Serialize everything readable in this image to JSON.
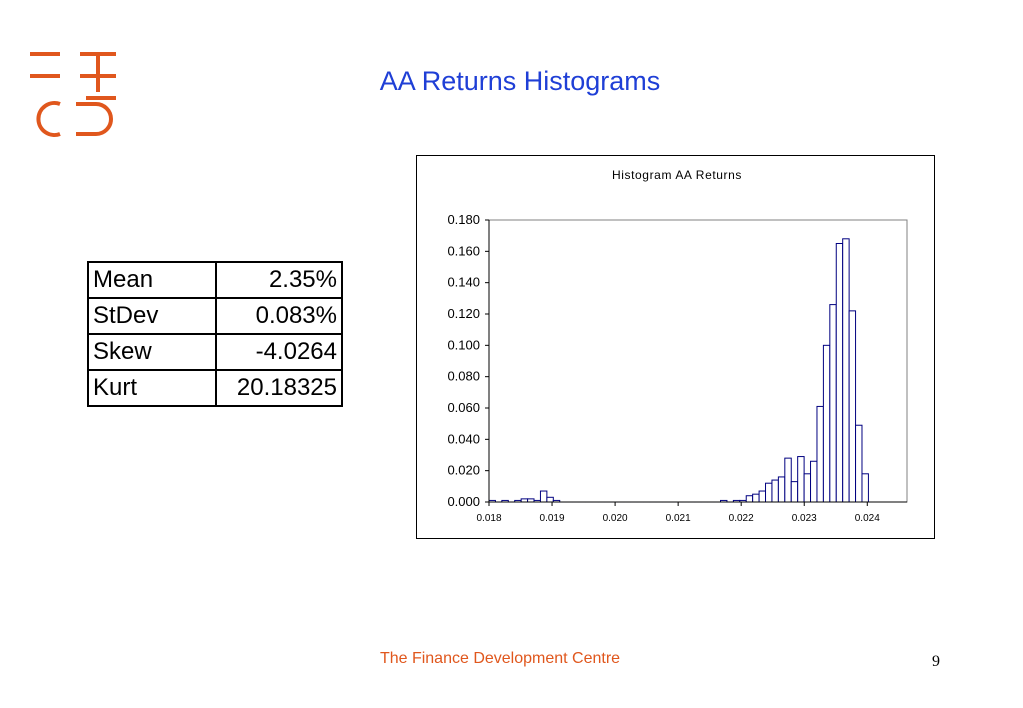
{
  "slide": {
    "title": "AA Returns Histograms",
    "footer": "The Finance Development Centre",
    "page_number": "9",
    "brand_color": "#e0571d",
    "title_color": "#1f3fd6"
  },
  "stats_table": [
    {
      "label": "Mean",
      "value": "2.35%"
    },
    {
      "label": "StDev",
      "value": "0.083%"
    },
    {
      "label": "Skew",
      "value": "-4.0264"
    },
    {
      "label": "Kurt",
      "value": "20.18325"
    }
  ],
  "chart_data": {
    "type": "bar",
    "title": "Histogram AA Returns",
    "xlabel": "",
    "ylabel": "",
    "ylim": [
      0,
      0.18
    ],
    "xlim": [
      0.018,
      0.02463
    ],
    "y_ticks": [
      "0.000",
      "0.020",
      "0.040",
      "0.060",
      "0.080",
      "0.100",
      "0.120",
      "0.140",
      "0.160",
      "0.180"
    ],
    "x_ticks": [
      "0.018",
      "0.019",
      "0.020",
      "0.021",
      "0.022",
      "0.023",
      "0.024"
    ],
    "bar_fill": "#ffffff",
    "bar_stroke": "#000080",
    "grid": false,
    "legend": "none",
    "bin_width": 0.000102,
    "values": [
      0.001,
      0.0,
      0.001,
      0.0,
      0.001,
      0.002,
      0.002,
      0.001,
      0.007,
      0.003,
      0.001,
      0.0,
      0.0,
      0.0,
      0.0,
      0.0,
      0.0,
      0.0,
      0.0,
      0.0,
      0.0,
      0.0,
      0.0,
      0.0,
      0.0,
      0.0,
      0.0,
      0.0,
      0.0,
      0.0,
      0.0,
      0.0,
      0.0,
      0.0,
      0.0,
      0.0,
      0.001,
      0.0,
      0.001,
      0.001,
      0.004,
      0.005,
      0.007,
      0.012,
      0.014,
      0.016,
      0.028,
      0.013,
      0.029,
      0.018,
      0.026,
      0.061,
      0.1,
      0.126,
      0.165,
      0.168,
      0.122,
      0.049,
      0.018
    ]
  }
}
